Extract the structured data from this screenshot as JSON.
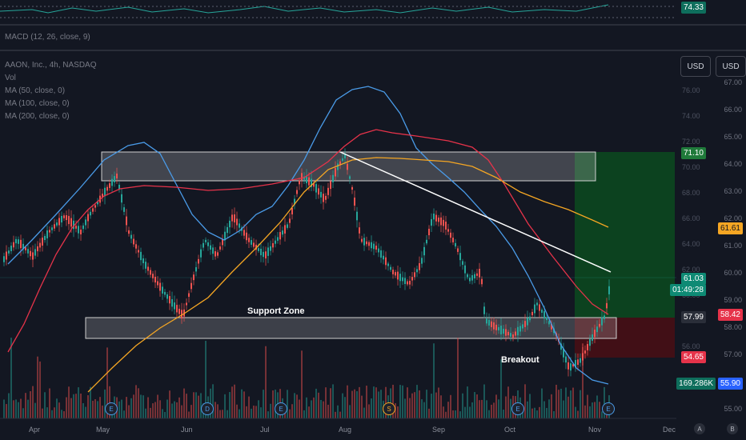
{
  "rsi": {
    "value": "74.33"
  },
  "macd": {
    "label": "MACD (12, 26, close, 9)"
  },
  "legend": {
    "symbol": "AAON, Inc., 4h, NASDAQ",
    "vol": "Vol",
    "ma50": "MA (50, close, 0)",
    "ma100": "MA (100, close, 0)",
    "ma200": "MA (200, close, 0)"
  },
  "currency": {
    "left": "USD",
    "right": "USD"
  },
  "left_scale": [
    "76.00",
    "74.00",
    "72.00",
    "70.00",
    "68.00",
    "66.00",
    "64.00",
    "62.00",
    "60.00",
    "58.00",
    "56.00"
  ],
  "right_scale": [
    "67.00",
    "66.00",
    "65.00",
    "64.00",
    "63.00",
    "62.00",
    "61.00",
    "60.00",
    "59.00",
    "58.00",
    "57.00",
    "56.00",
    "55.00"
  ],
  "price_boxes": {
    "target": "71.10",
    "ma_value": "61.61",
    "last": "61.03",
    "countdown": "01:49:28",
    "entry": "57.99",
    "ma_red": "58.42",
    "stop": "54.65",
    "volume": "169.286K",
    "left_low": "55.90"
  },
  "annotations": {
    "support": "Support Zone",
    "breakout": "Breakout"
  },
  "months": [
    "Apr",
    "May",
    "Jun",
    "Jul",
    "Aug",
    "Sep",
    "Oct",
    "Nov",
    "Dec"
  ],
  "events": [
    "E",
    "D",
    "E",
    "S",
    "E",
    "E"
  ],
  "buttons": {
    "a": "A",
    "b": "B"
  },
  "colors": {
    "up": "#26a69a",
    "down": "#ef5350",
    "ma_blue": "#4a9be8",
    "ma_red": "#e6334a",
    "ma_orange": "#f5a623",
    "target_zone": "#0c4a1e",
    "stop_zone": "#4a0e14"
  }
}
